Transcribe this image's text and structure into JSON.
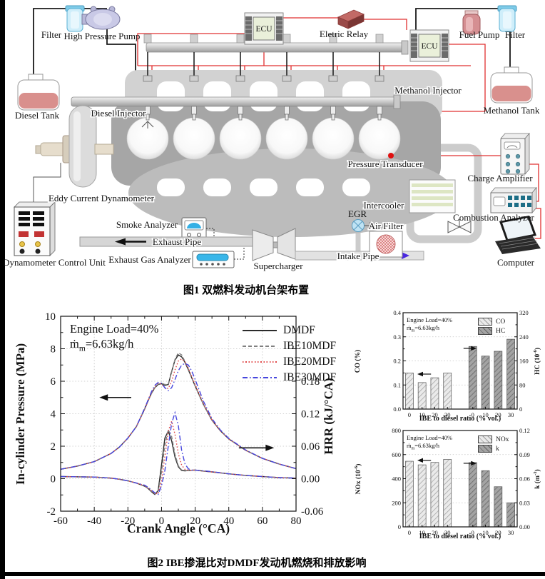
{
  "page": {
    "fig1_caption": "图1  双燃料发动机台架布置",
    "fig2_caption": "图2  IBE掺混比对DMDF发动机燃烧和排放影响"
  },
  "diagram": {
    "labels": {
      "filter_left": "Filter",
      "high_pressure_pump": "High Pressure Pump",
      "diesel_tank": "Diesel Tank",
      "ecu_top": "ECU",
      "eletric_relay": "Eletric Relay",
      "ecu_right": "ECU",
      "fuel_pump": "Fuel Pump",
      "filter_right": "Filter",
      "methanol_tank": "Methanol Tank",
      "methanol_injector": "Methanol Injector",
      "diesel_injector": "Diesel Injector",
      "pressure_transducer": "Pressure Transducer",
      "eddy_current_dynamometer": "Eddy Current Dynamometer",
      "dynamometer_control_unit": "Dynamometer Control Unit",
      "smoke_analyzer": "Smoke Analyzer",
      "exhaust_pipe": "Exhaust Pipe",
      "exhaust_gas_analyzer": "Exhaust Gas Analyzer",
      "supercharger": "Supercharger",
      "intake_pipe": "Intake Pipe",
      "egr": "EGR",
      "air_filter": "Air Filter",
      "intercooler": "Intercooler",
      "charge_amplifier": "Charge Amplifier",
      "combustion_analyzer": "Combustion Analyzer",
      "computer": "Computer"
    }
  },
  "chart_data": [
    {
      "type": "line",
      "xlabel": "Crank Angle (°CA)",
      "ylabel_left": "In-cylinder Pressure (MPa)",
      "ylabel_right": "HRR (kJ/°CA)",
      "xlim": [
        -60,
        80
      ],
      "ylim_left": [
        -2,
        10
      ],
      "ylim_right": [
        -0.06,
        0.3
      ],
      "xticks": [
        "-60",
        "-40",
        "-20",
        "0",
        "20",
        "40",
        "60",
        "80"
      ],
      "yticks_left": [
        "-2",
        "0",
        "2",
        "4",
        "6",
        "8",
        "10"
      ],
      "yticks_right": [
        "-0.06",
        "0.00",
        "0.06",
        "0.12",
        "0.18"
      ],
      "grid": true,
      "legend": [
        "DMDF",
        "IBE10MDF",
        "IBE20MDF",
        "IBE30MDF"
      ],
      "annotation": {
        "load": "Engine Load=40%",
        "mdot": "ṁ",
        "msub": "m",
        "mrest": "=6.63kg/h"
      },
      "arrows": [
        {
          "x1": -18,
          "x2": -37,
          "y": 5.0
        },
        {
          "x1": 46,
          "x2": 67,
          "y": 1.9
        }
      ],
      "series_pressure": [
        {
          "name": "DMDF",
          "color": "#2b2b2b",
          "dash": "",
          "x": [
            -60,
            -50,
            -40,
            -30,
            -25,
            -20,
            -15,
            -10,
            -8,
            -6,
            -4,
            -2,
            0,
            2,
            4,
            6,
            8,
            10,
            12,
            14,
            16,
            18,
            20,
            25,
            30,
            35,
            40,
            50,
            60,
            70,
            80
          ],
          "y": [
            0.58,
            0.78,
            1.05,
            1.55,
            1.95,
            2.5,
            3.2,
            4.3,
            4.8,
            5.25,
            5.6,
            5.8,
            5.85,
            5.75,
            5.8,
            6.6,
            7.3,
            7.62,
            7.5,
            7.15,
            6.7,
            6.2,
            5.7,
            4.55,
            3.6,
            2.95,
            2.45,
            1.75,
            1.25,
            0.9,
            0.62
          ]
        },
        {
          "name": "IBE10MDF",
          "color": "#808080",
          "dash": "5,3",
          "x": [
            -60,
            -50,
            -40,
            -30,
            -25,
            -20,
            -15,
            -10,
            -8,
            -6,
            -4,
            -2,
            0,
            2,
            4,
            6,
            8,
            10,
            12,
            14,
            16,
            18,
            20,
            25,
            30,
            35,
            40,
            50,
            60,
            70,
            80
          ],
          "y": [
            0.58,
            0.78,
            1.05,
            1.55,
            1.95,
            2.5,
            3.2,
            4.3,
            4.8,
            5.25,
            5.6,
            5.82,
            5.88,
            5.8,
            5.85,
            6.55,
            7.35,
            7.75,
            7.62,
            7.2,
            6.75,
            6.2,
            5.7,
            4.55,
            3.6,
            2.95,
            2.45,
            1.75,
            1.25,
            0.9,
            0.62
          ]
        },
        {
          "name": "IBE20MDF",
          "color": "#e04848",
          "dash": "1.6,2.6",
          "x": [
            -60,
            -50,
            -40,
            -30,
            -25,
            -20,
            -15,
            -10,
            -8,
            -6,
            -4,
            -2,
            0,
            2,
            4,
            6,
            8,
            10,
            12,
            14,
            16,
            18,
            20,
            25,
            30,
            35,
            40,
            50,
            60,
            70,
            80
          ],
          "y": [
            0.58,
            0.78,
            1.05,
            1.55,
            1.95,
            2.5,
            3.2,
            4.3,
            4.8,
            5.3,
            5.65,
            5.88,
            5.82,
            5.6,
            5.55,
            6.0,
            6.7,
            7.25,
            7.38,
            7.2,
            6.8,
            6.3,
            5.8,
            4.6,
            3.62,
            2.95,
            2.45,
            1.75,
            1.25,
            0.9,
            0.62
          ]
        },
        {
          "name": "IBE30MDF",
          "color": "#4545dd",
          "dash": "7,3,1.6,3",
          "x": [
            -60,
            -50,
            -40,
            -30,
            -25,
            -20,
            -15,
            -10,
            -8,
            -6,
            -4,
            -2,
            0,
            2,
            4,
            6,
            8,
            10,
            12,
            14,
            16,
            18,
            20,
            25,
            30,
            35,
            40,
            50,
            60,
            70,
            80
          ],
          "y": [
            0.58,
            0.78,
            1.05,
            1.55,
            1.95,
            2.5,
            3.2,
            4.35,
            4.85,
            5.35,
            5.75,
            5.92,
            5.88,
            5.6,
            5.42,
            5.6,
            6.1,
            6.65,
            7.0,
            7.1,
            7.0,
            6.62,
            6.1,
            4.75,
            3.7,
            3.0,
            2.48,
            1.77,
            1.25,
            0.9,
            0.62
          ]
        }
      ],
      "series_hrr": [
        {
          "name": "DMDF",
          "color": "#2b2b2b",
          "dash": "",
          "x": [
            -60,
            -40,
            -30,
            -25,
            -20,
            -15,
            -10,
            -8,
            -6,
            -4,
            -2,
            0,
            2,
            4,
            6,
            8,
            10,
            12,
            14,
            16,
            18,
            20,
            25,
            30,
            40,
            50,
            60,
            70,
            80
          ],
          "y": [
            0.004,
            0.003,
            0.001,
            -0.001,
            -0.004,
            -0.008,
            -0.014,
            -0.018,
            -0.024,
            -0.029,
            -0.022,
            0.025,
            0.075,
            0.088,
            0.07,
            0.04,
            0.022,
            0.015,
            0.0145,
            0.015,
            0.0155,
            0.016,
            0.014,
            0.0125,
            0.009,
            0.006,
            0.004,
            0.002,
            0.001
          ]
        },
        {
          "name": "IBE10MDF",
          "color": "#808080",
          "dash": "5,3",
          "x": [
            -60,
            -40,
            -30,
            -25,
            -20,
            -15,
            -10,
            -8,
            -6,
            -4,
            -2,
            0,
            2,
            4,
            6,
            8,
            10,
            12,
            14,
            16,
            18,
            20,
            25,
            30,
            40,
            50,
            60,
            70,
            80
          ],
          "y": [
            0.004,
            0.003,
            0.001,
            -0.001,
            -0.004,
            -0.008,
            -0.014,
            -0.018,
            -0.023,
            -0.028,
            -0.025,
            0.012,
            0.062,
            0.09,
            0.078,
            0.045,
            0.024,
            0.016,
            0.015,
            0.015,
            0.0155,
            0.016,
            0.014,
            0.0125,
            0.009,
            0.006,
            0.004,
            0.002,
            0.001
          ]
        },
        {
          "name": "IBE20MDF",
          "color": "#e04848",
          "dash": "1.6,2.6",
          "x": [
            -60,
            -40,
            -30,
            -25,
            -20,
            -15,
            -10,
            -8,
            -6,
            -4,
            -2,
            0,
            2,
            4,
            6,
            8,
            10,
            12,
            14,
            16,
            18,
            20,
            25,
            30,
            40,
            50,
            60,
            70,
            80
          ],
          "y": [
            0.004,
            0.003,
            0.001,
            -0.001,
            -0.004,
            -0.008,
            -0.013,
            -0.017,
            -0.022,
            -0.027,
            -0.028,
            -0.004,
            0.04,
            0.088,
            0.106,
            0.082,
            0.046,
            0.025,
            0.017,
            0.016,
            0.0155,
            0.016,
            0.014,
            0.0125,
            0.009,
            0.006,
            0.004,
            0.002,
            0.001
          ]
        },
        {
          "name": "IBE30MDF",
          "color": "#4545dd",
          "dash": "7,3,1.6,3",
          "x": [
            -60,
            -40,
            -30,
            -25,
            -20,
            -15,
            -10,
            -8,
            -6,
            -4,
            -2,
            0,
            2,
            4,
            6,
            8,
            10,
            12,
            14,
            16,
            18,
            20,
            25,
            30,
            40,
            50,
            60,
            70,
            80
          ],
          "y": [
            0.004,
            0.003,
            0.001,
            -0.001,
            -0.004,
            -0.008,
            -0.012,
            -0.016,
            -0.021,
            -0.026,
            -0.029,
            -0.013,
            0.015,
            0.06,
            0.102,
            0.122,
            0.098,
            0.052,
            0.027,
            0.018,
            0.016,
            0.016,
            0.0145,
            0.013,
            0.009,
            0.006,
            0.004,
            0.002,
            0.001
          ]
        }
      ]
    },
    {
      "type": "bar",
      "xlabel": "IBE to diesel ratio (% vol.)",
      "ylabel_left": "CO (%)",
      "ylabel_right_parts": {
        "pre": "HC (10",
        "sup": "-6",
        "post": ")"
      },
      "categories": [
        "0",
        "10",
        "20",
        "30"
      ],
      "ylim_left": [
        0,
        0.4
      ],
      "ylim_right": [
        0,
        320
      ],
      "yticks_left": [
        "0.0",
        "0.1",
        "0.2",
        "0.3",
        "0.4"
      ],
      "yticks_right": [
        "0",
        "80",
        "160",
        "240",
        "320"
      ],
      "grid": true,
      "legend": [
        "CO",
        "HC"
      ],
      "annotation": {
        "load": "Engine Load=40%",
        "mdot": "ṁ",
        "msub": "m",
        "mrest": "=6.63kg/h"
      },
      "arrows": [
        {
          "x1f": 0.245,
          "x2f": 0.125,
          "yf": 0.637
        },
        {
          "x1f": 0.53,
          "x2f": 0.645,
          "yf": 0.37
        }
      ],
      "series": [
        {
          "name": "CO",
          "axis": "left",
          "values": [
            0.15,
            0.11,
            0.13,
            0.15
          ]
        },
        {
          "name": "HC",
          "axis": "right",
          "values": [
            208,
            176,
            192,
            232
          ]
        }
      ]
    },
    {
      "type": "bar",
      "xlabel": "IBE to diesel ratio (% vol.)",
      "ylabel_left_parts": {
        "pre": "NOx (10",
        "sup": "-6",
        "post": ")"
      },
      "ylabel_right_parts": {
        "pre": "k (m",
        "sup": "-1",
        "post": ")"
      },
      "categories": [
        "0",
        "10",
        "20",
        "30"
      ],
      "ylim_left": [
        0,
        800
      ],
      "ylim_right": [
        0,
        0.12
      ],
      "yticks_left": [
        "0",
        "200",
        "400",
        "600",
        "800"
      ],
      "yticks_right": [
        "0.00",
        "0.03",
        "0.06",
        "0.09",
        "0.12"
      ],
      "grid": true,
      "legend": [
        "NOx",
        "k"
      ],
      "annotation": {
        "load": "Engine Load=40%",
        "mdot": "ṁ",
        "msub": "m",
        "mrest": "=6.63kg/h"
      },
      "arrows": [
        {
          "x1f": 0.245,
          "x2f": 0.125,
          "yf": 0.31
        },
        {
          "x1f": 0.53,
          "x2f": 0.645,
          "yf": 0.34
        }
      ],
      "series": [
        {
          "name": "NOx",
          "axis": "left",
          "values": [
            545,
            515,
            535,
            560
          ]
        },
        {
          "name": "k",
          "axis": "right",
          "values": [
            0.08,
            0.07,
            0.05,
            0.03
          ]
        }
      ]
    }
  ]
}
